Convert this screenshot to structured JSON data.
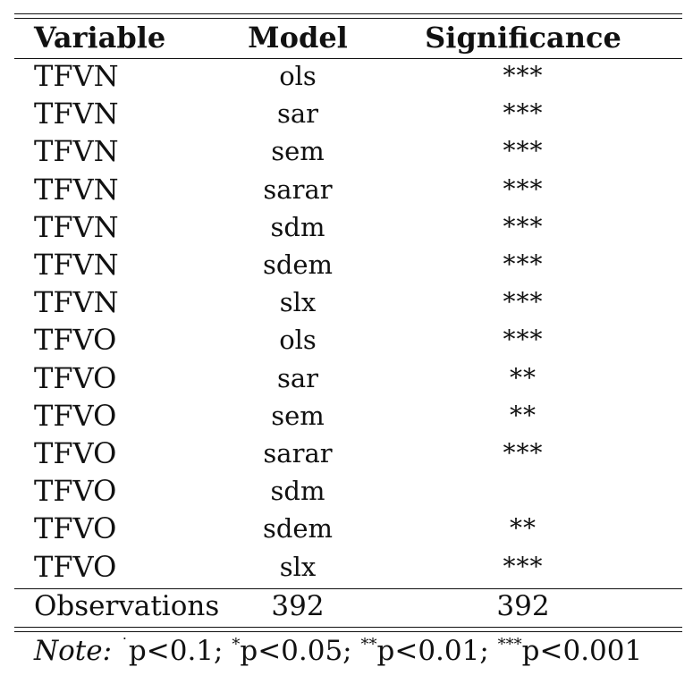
{
  "table": {
    "headers": {
      "variable": "Variable",
      "model": "Model",
      "significance": "Significance"
    },
    "rows": [
      {
        "variable": "TFVN",
        "model": "ols",
        "significance": "***"
      },
      {
        "variable": "TFVN",
        "model": "sar",
        "significance": "***"
      },
      {
        "variable": "TFVN",
        "model": "sem",
        "significance": "***"
      },
      {
        "variable": "TFVN",
        "model": "sarar",
        "significance": "***"
      },
      {
        "variable": "TFVN",
        "model": "sdm",
        "significance": "***"
      },
      {
        "variable": "TFVN",
        "model": "sdem",
        "significance": "***"
      },
      {
        "variable": "TFVN",
        "model": "slx",
        "significance": "***"
      },
      {
        "variable": "TFVO",
        "model": "ols",
        "significance": "***"
      },
      {
        "variable": "TFVO",
        "model": "sar",
        "significance": "**"
      },
      {
        "variable": "TFVO",
        "model": "sem",
        "significance": "**"
      },
      {
        "variable": "TFVO",
        "model": "sarar",
        "significance": "***"
      },
      {
        "variable": "TFVO",
        "model": "sdm",
        "significance": ""
      },
      {
        "variable": "TFVO",
        "model": "sdem",
        "significance": "**"
      },
      {
        "variable": "TFVO",
        "model": "slx",
        "significance": "***"
      }
    ],
    "observations": {
      "label": "Observations",
      "model": "392",
      "significance": "392"
    }
  },
  "note": {
    "label": "Note:",
    "items": [
      {
        "marker": "˙",
        "text": "p<0.1;"
      },
      {
        "marker": "*",
        "text": "p<0.05;"
      },
      {
        "marker": "**",
        "text": "p<0.01;"
      },
      {
        "marker": "***",
        "text": "p<0.001"
      }
    ]
  }
}
